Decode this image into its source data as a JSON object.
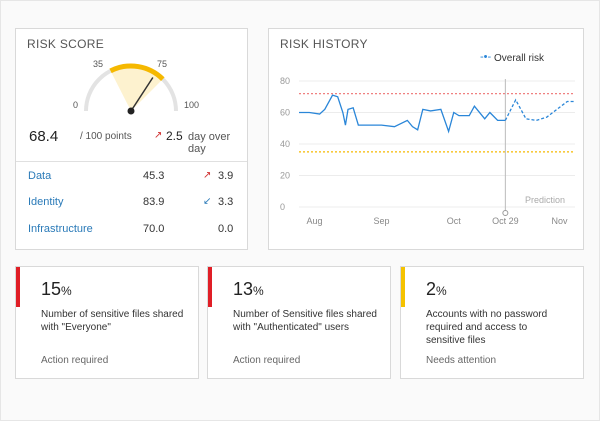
{
  "risk_score": {
    "title": "RISK SCORE",
    "gauge": {
      "min": "0",
      "max": "100",
      "tick_low": "35",
      "tick_high": "75",
      "value": 68.4,
      "band_low": 35,
      "band_high": 75,
      "band_color": "#f5b800"
    },
    "score": "68.4",
    "score_suffix": "/ 100 points",
    "delta_arrow": "↗",
    "delta": "2.5",
    "delta_label": "day over day",
    "rows": [
      {
        "label": "Data",
        "value": "45.3",
        "arrow": "↗",
        "arrow_color": "#d03030",
        "delta": "3.9"
      },
      {
        "label": "Identity",
        "value": "83.9",
        "arrow": "↙",
        "arrow_color": "#2a7ab8",
        "delta": "3.3"
      },
      {
        "label": "Infrastructure",
        "value": "70.0",
        "arrow": "",
        "arrow_color": "#333333",
        "delta": "0.0"
      }
    ]
  },
  "risk_history": {
    "title": "RISK HISTORY",
    "legend": "Overall risk",
    "prediction_label": "Prediction",
    "chart_data": {
      "type": "line",
      "x_ticks": [
        "Aug",
        "Sep",
        "Oct",
        "Oct 29",
        "Nov"
      ],
      "y_ticks": [
        "0",
        "20",
        "40",
        "60",
        "80"
      ],
      "ylim": [
        0,
        80
      ],
      "thresholds": [
        {
          "value": 72,
          "color": "#f08080"
        },
        {
          "value": 35,
          "color": "#f5b800"
        }
      ],
      "series": [
        {
          "name": "Overall risk",
          "color": "#2a86d8",
          "actual": [
            [
              0,
              60
            ],
            [
              4,
              60
            ],
            [
              8,
              59
            ],
            [
              10,
              62
            ],
            [
              13,
              71
            ],
            [
              15,
              70
            ],
            [
              17,
              60
            ],
            [
              18,
              52
            ],
            [
              19,
              62
            ],
            [
              21,
              63
            ],
            [
              23,
              52
            ],
            [
              27,
              52
            ],
            [
              32,
              52
            ],
            [
              37,
              51
            ],
            [
              42,
              55
            ],
            [
              44,
              51
            ],
            [
              46,
              49
            ],
            [
              48,
              62
            ],
            [
              51,
              61
            ],
            [
              55,
              62
            ],
            [
              58,
              48
            ],
            [
              60,
              60
            ],
            [
              62,
              58
            ],
            [
              66,
              58
            ],
            [
              68,
              64
            ],
            [
              72,
              56
            ],
            [
              74,
              60
            ],
            [
              77,
              55
            ],
            [
              80,
              55
            ]
          ],
          "predicted": [
            [
              80,
              55
            ],
            [
              84,
              68
            ],
            [
              88,
              56
            ],
            [
              92,
              55
            ],
            [
              96,
              57
            ],
            [
              100,
              62
            ],
            [
              104,
              67
            ],
            [
              107,
              67
            ]
          ]
        }
      ]
    }
  },
  "metrics": [
    {
      "value": "15",
      "unit": "%",
      "description": "Number of sensitive files shared with \"Everyone\"",
      "status": "Action required",
      "color": "#e01e26"
    },
    {
      "value": "13",
      "unit": "%",
      "description": "Number of Sensitive files shared  with \"Authenticated\" users",
      "status": "Action required",
      "color": "#e01e26"
    },
    {
      "value": "2",
      "unit": "%",
      "description": "Accounts with no password required and access to sensitive files",
      "status": "Needs attention",
      "color": "#f5c200"
    }
  ]
}
